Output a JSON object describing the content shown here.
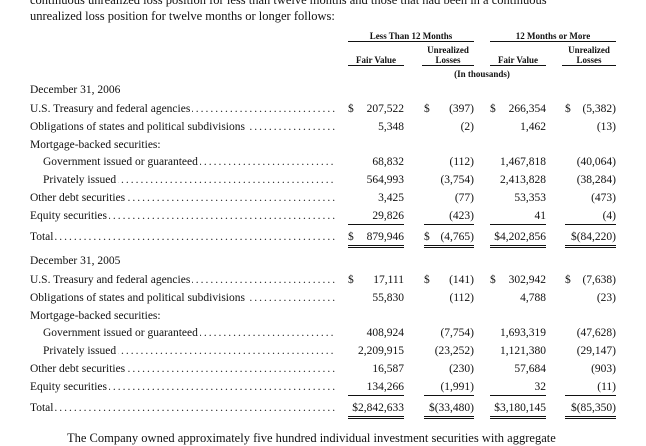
{
  "intro": {
    "line1": "continuous unrealized loss position for less than twelve months and those that had been in a continuous",
    "line2": "unrealized loss position for twelve months or longer follows:"
  },
  "headers": {
    "group1": "Less Than 12 Months",
    "group2": "12 Months or More",
    "fair_value": "Fair Value",
    "unrealized_losses_1": "Unrealized",
    "unrealized_losses_2": "Losses",
    "units": "(In thousands)"
  },
  "sections": [
    {
      "title": "December 31, 2006",
      "rows": [
        {
          "label": "U.S. Treasury and federal agencies",
          "fv1": "207,522",
          "ul1": "(397)",
          "fv2": "266,354",
          "ul2": "(5,382)"
        },
        {
          "label": "Obligations of states and political subdivisions",
          "fv1": "5,348",
          "ul1": "(2)",
          "fv2": "1,462",
          "ul2": "(13)"
        },
        {
          "label": "Mortgage-backed securities:"
        },
        {
          "label": "Government issued or guaranteed",
          "fv1": "68,832",
          "ul1": "(112)",
          "fv2": "1,467,818",
          "ul2": "(40,064)"
        },
        {
          "label": "Privately issued",
          "fv1": "564,993",
          "ul1": "(3,754)",
          "fv2": "2,413,828",
          "ul2": "(38,284)"
        },
        {
          "label": "Other debt securities",
          "fv1": "3,425",
          "ul1": "(77)",
          "fv2": "53,353",
          "ul2": "(473)"
        },
        {
          "label": "Equity securities",
          "fv1": "29,826",
          "ul1": "(423)",
          "fv2": "41",
          "ul2": "(4)"
        },
        {
          "label": "Total",
          "fv1": "879,946",
          "ul1": "(4,765)",
          "fv2": "$4,202,856",
          "ul2": "$(84,220)"
        }
      ]
    },
    {
      "title": "December 31, 2005",
      "rows": [
        {
          "label": "U.S. Treasury and federal agencies",
          "fv1": "17,111",
          "ul1": "(141)",
          "fv2": "302,942",
          "ul2": "(7,638)"
        },
        {
          "label": "Obligations of states and political subdivisions",
          "fv1": "55,830",
          "ul1": "(112)",
          "fv2": "4,788",
          "ul2": "(23)"
        },
        {
          "label": "Mortgage-backed securities:"
        },
        {
          "label": "Government issued or guaranteed",
          "fv1": "408,924",
          "ul1": "(7,754)",
          "fv2": "1,693,319",
          "ul2": "(47,628)"
        },
        {
          "label": "Privately issued",
          "fv1": "2,209,915",
          "ul1": "(23,252)",
          "fv2": "1,121,380",
          "ul2": "(29,147)"
        },
        {
          "label": "Other debt securities",
          "fv1": "16,587",
          "ul1": "(230)",
          "fv2": "57,684",
          "ul2": "(903)"
        },
        {
          "label": "Equity securities",
          "fv1": "134,266",
          "ul1": "(1,991)",
          "fv2": "32",
          "ul2": "(11)"
        },
        {
          "label": "Total",
          "fv1": "$2,842,633",
          "ul1": "$(33,480)",
          "fv2": "$3,180,145",
          "ul2": "$(85,350)"
        }
      ]
    }
  ],
  "currency": "$",
  "footer": "The Company owned approximately five hundred individual investment securities with aggregate"
}
